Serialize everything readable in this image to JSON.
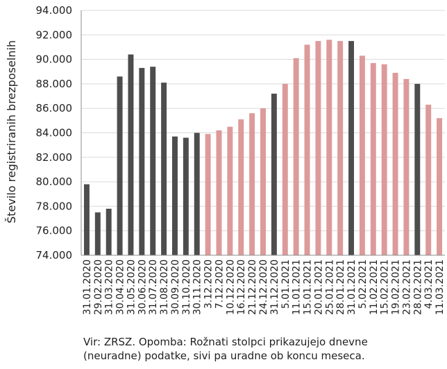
{
  "chart_data": {
    "type": "bar",
    "title": "",
    "xlabel": "",
    "ylabel": "Število registriranih brezposelnih",
    "ylim": [
      74000,
      94000
    ],
    "yticks": [
      "74.000",
      "76.000",
      "78.000",
      "80.000",
      "82.000",
      "84.000",
      "86.000",
      "88.000",
      "90.000",
      "92.000",
      "94.000"
    ],
    "grid": true,
    "legend": "none",
    "colors": {
      "official": "#4d4d4d",
      "daily": "#dd9a9a",
      "grid": "#d9d9d9",
      "axis": "#8c8c8c"
    },
    "categories": [
      "31.01.2020",
      "29.02.2020",
      "31.03.2020",
      "30.04.2020",
      "31.05.2020",
      "30.06.2020",
      "31.07.2020",
      "31.08.2020",
      "30.09.2020",
      "31.10.2020",
      "30.11.2020",
      "3.12.2020",
      "7.12.2020",
      "10.12.2020",
      "16.12.2020",
      "21.12.2020",
      "24.12.2020",
      "31.12.2020",
      "5.01.2021",
      "11.01.2021",
      "15.01.2021",
      "20.01.2021",
      "25.01.2021",
      "28.01.2021",
      "31.01.2021",
      "5.02.2021",
      "11.02.2021",
      "15.02.2021",
      "19.02.2021",
      "23.02.2021",
      "28.02.2021",
      "4.03.2021",
      "11.03.2021"
    ],
    "values": [
      79800,
      77500,
      77800,
      88600,
      90400,
      89300,
      89400,
      88100,
      83700,
      83600,
      84000,
      83900,
      84200,
      84500,
      85100,
      85600,
      86000,
      87200,
      88000,
      90100,
      91200,
      91500,
      91600,
      91500,
      91500,
      90300,
      89700,
      89600,
      88900,
      88400,
      88000,
      86300,
      85200
    ],
    "kinds": [
      "official",
      "official",
      "official",
      "official",
      "official",
      "official",
      "official",
      "official",
      "official",
      "official",
      "official",
      "daily",
      "daily",
      "daily",
      "daily",
      "daily",
      "daily",
      "official",
      "daily",
      "daily",
      "daily",
      "daily",
      "daily",
      "daily",
      "official",
      "daily",
      "daily",
      "daily",
      "daily",
      "daily",
      "official",
      "daily",
      "daily"
    ]
  },
  "note": {
    "line1": "Vir: ZRSZ. Opomba: Rožnati stolpci prikazujejo dnevne",
    "line2": "(neuradne) podatke, sivi pa uradne ob koncu meseca."
  }
}
